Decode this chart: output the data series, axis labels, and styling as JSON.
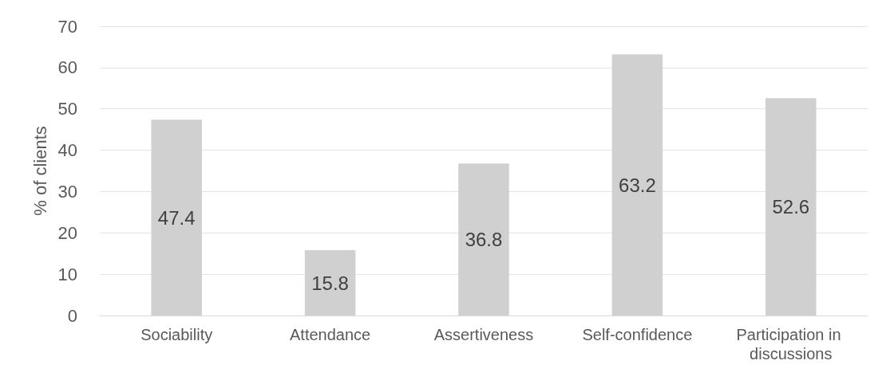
{
  "chart_data": {
    "type": "bar",
    "ylabel": "% of clients",
    "categories": [
      "Sociability",
      "Attendance",
      "Assertiveness",
      "Self-confidence",
      "Participation in discussions"
    ],
    "values": [
      47.4,
      15.8,
      36.8,
      63.2,
      52.6
    ],
    "color": "#d0d0d0",
    "ylim": [
      0,
      70
    ],
    "yticks": [
      0,
      10,
      20,
      30,
      40,
      50,
      60,
      70
    ],
    "grid": "y",
    "data_labels": true
  }
}
